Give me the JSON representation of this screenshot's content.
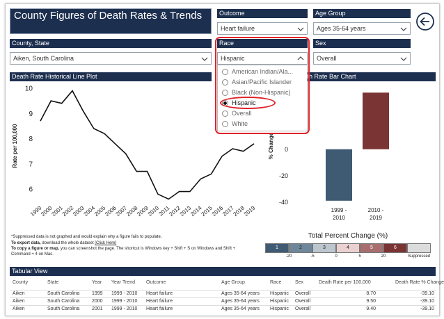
{
  "header": {
    "title": "County Figures of Death Rates & Trends"
  },
  "filters": [
    {
      "label": "Outcome",
      "value": "Heart failure"
    },
    {
      "label": "Age Group",
      "value": "Ages 35-64 years"
    },
    {
      "label": "County, State",
      "value": "Aiken, South Carolina"
    },
    {
      "label": "Sex",
      "value": "Overall"
    }
  ],
  "race_filter": {
    "label": "Race",
    "value": "Hispanic",
    "expanded": true,
    "options": [
      "American Indian/Ala...",
      "Asian/Pacific Islander",
      "Black (Non-Hispanic)",
      "Hispanic",
      "Overall",
      "White"
    ],
    "selected": 3
  },
  "line_chart": {
    "type": "line",
    "title": "Death Rate Historical Line Plot",
    "y_label": "Rate per 100,000",
    "x": [
      1999,
      2000,
      2001,
      2002,
      2003,
      2004,
      2005,
      2006,
      2007,
      2008,
      2009,
      2010,
      2011,
      2012,
      2013,
      2014,
      2015,
      2016,
      2017,
      2018,
      2019
    ],
    "values": [
      8.7,
      9.5,
      9.4,
      9.9,
      9.1,
      8.4,
      8.2,
      7.8,
      7.4,
      6.7,
      6.7,
      5.8,
      5.6,
      5.9,
      5.9,
      6.4,
      6.6,
      7.3,
      7.6,
      7.5,
      7.8
    ],
    "color": "#111111",
    "ylim": [
      5.4,
      10.2
    ],
    "yticks": [
      6,
      7,
      8,
      9,
      10
    ]
  },
  "bar_chart": {
    "type": "bar",
    "title": "Death Rate Bar Chart",
    "y_label": "% Change",
    "categories": [
      "1999 - 2010",
      "2010 - 2019"
    ],
    "values": [
      -39.1,
      43
    ],
    "colors": [
      "#3f5b74",
      "#7b3434"
    ],
    "ylim": [
      -45,
      50
    ],
    "yticks": [
      -40,
      -20,
      0,
      20,
      40
    ]
  },
  "legend": {
    "title": "Total Percent Change (%)",
    "swatches": [
      {
        "label": "1",
        "color": "#3f5b74"
      },
      {
        "label": "2",
        "color": "#6f879b"
      },
      {
        "label": "3",
        "color": "#bcc6cf"
      },
      {
        "label": "4",
        "color": "#ead0d0"
      },
      {
        "label": "5",
        "color": "#a86e6e"
      },
      {
        "label": "6",
        "color": "#7b3434"
      }
    ],
    "breaks": [
      -20,
      -5,
      0,
      5,
      20
    ],
    "suppressed": {
      "label": "Suppressed",
      "color": "#dcdcdc"
    }
  },
  "notes": {
    "suppressed": "*Suppressed data is not graphed and would explain why a figure fails to populate.",
    "export": {
      "bold": "To export data,",
      "text": " download the whole dataset ",
      "link": "[Click Here]"
    },
    "copy": {
      "bold": "To copy a figure or map,",
      "text": " you can screenshot the page. The shortcut is Windows key + Shift + S on Windows and Shift + Command + 4 on Mac."
    }
  },
  "table": {
    "title": "Tabular View",
    "columns": [
      "County",
      "State",
      "Year",
      "Year Trend",
      "Outcome",
      "Age Group",
      "Race",
      "Sex",
      "Death Rate per 100,000",
      "Death Rate % Change"
    ],
    "rows": [
      [
        "Aiken",
        "South Carolina",
        "1999",
        "1999 - 2010",
        "Heart failure",
        "Ages 35-64 years",
        "Hispanic",
        "Overall",
        "8.70",
        "-39.10"
      ],
      [
        "Aiken",
        "South Carolina",
        "2000",
        "1999 - 2010",
        "Heart failure",
        "Ages 35-64 years",
        "Hispanic",
        "Overall",
        "9.50",
        "-39.10"
      ],
      [
        "Aiken",
        "South Carolina",
        "2001",
        "1999 - 2010",
        "Heart failure",
        "Ages 35-64 years",
        "Hispanic",
        "Overall",
        "9.40",
        "-39.10"
      ]
    ]
  }
}
